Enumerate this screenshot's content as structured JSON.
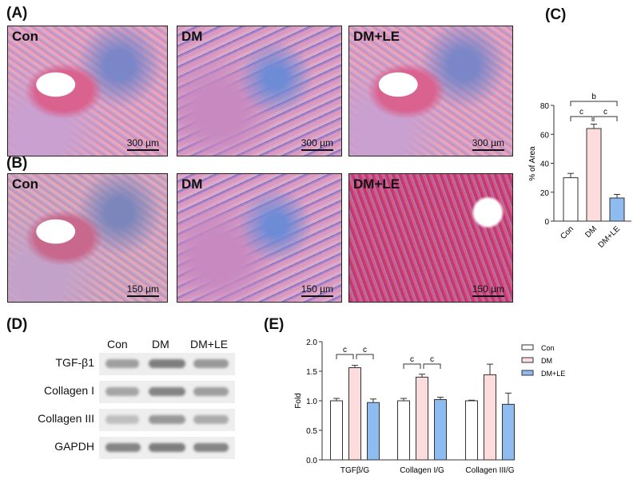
{
  "panels": {
    "A": "(A)",
    "B": "(B)",
    "C": "(C)",
    "D": "(D)",
    "E": "(E)"
  },
  "histology": {
    "rowA": [
      {
        "label": "Con",
        "scale": "300 µm"
      },
      {
        "label": "DM",
        "scale": "300 µm"
      },
      {
        "label": "DM+LE",
        "scale": "300 µm"
      }
    ],
    "rowB": [
      {
        "label": "Con",
        "scale": "150 µm"
      },
      {
        "label": "DM",
        "scale": "150 µm"
      },
      {
        "label": "DM+LE",
        "scale": "150 µm"
      }
    ]
  },
  "western": {
    "columns": [
      "Con",
      "DM",
      "DM+LE"
    ],
    "rows": [
      "TGF-β1",
      "Collagen I",
      "Collagen III",
      "GAPDH"
    ]
  },
  "colors": {
    "con": "#ffffff",
    "dm": "#fcdcdc",
    "dmle": "#8fbcf0",
    "edge": "#333333"
  },
  "chart_data": [
    {
      "type": "bar",
      "title": "",
      "xlabel": "",
      "ylabel": "% of Area",
      "ylim": [
        0,
        80
      ],
      "yticks": [
        0,
        20,
        40,
        60,
        80
      ],
      "categories": [
        "Con",
        "DM",
        "DM+LE"
      ],
      "values": [
        30,
        64,
        16
      ],
      "errors": [
        3,
        3,
        2.5
      ],
      "significance": [
        {
          "from": 0,
          "to": 1,
          "label": "c"
        },
        {
          "from": 1,
          "to": 2,
          "label": "c"
        },
        {
          "from": 0,
          "to": 2,
          "label": "b"
        }
      ]
    },
    {
      "type": "bar",
      "title": "",
      "xlabel": "",
      "ylabel": "Fold",
      "ylim": [
        0,
        2.0
      ],
      "yticks": [
        "0.0",
        "0.5",
        "1.0",
        "1.5",
        "2.0"
      ],
      "categories": [
        "TGFβ/G",
        "Collagen I/G",
        "Collagen III/G"
      ],
      "series": [
        {
          "name": "Con",
          "values": [
            1.0,
            1.0,
            1.0
          ],
          "errors": [
            0.04,
            0.04,
            0.01
          ]
        },
        {
          "name": "DM",
          "values": [
            1.56,
            1.4,
            1.44
          ],
          "errors": [
            0.04,
            0.05,
            0.18
          ]
        },
        {
          "name": "DM+LE",
          "values": [
            0.97,
            1.02,
            0.94
          ],
          "errors": [
            0.06,
            0.04,
            0.19
          ]
        }
      ],
      "legend": "top-right",
      "significance": [
        {
          "group": 0,
          "from": 0,
          "to": 1,
          "label": "c"
        },
        {
          "group": 0,
          "from": 1,
          "to": 2,
          "label": "c"
        },
        {
          "group": 1,
          "from": 0,
          "to": 1,
          "label": "c"
        },
        {
          "group": 1,
          "from": 1,
          "to": 2,
          "label": "c"
        }
      ]
    }
  ]
}
